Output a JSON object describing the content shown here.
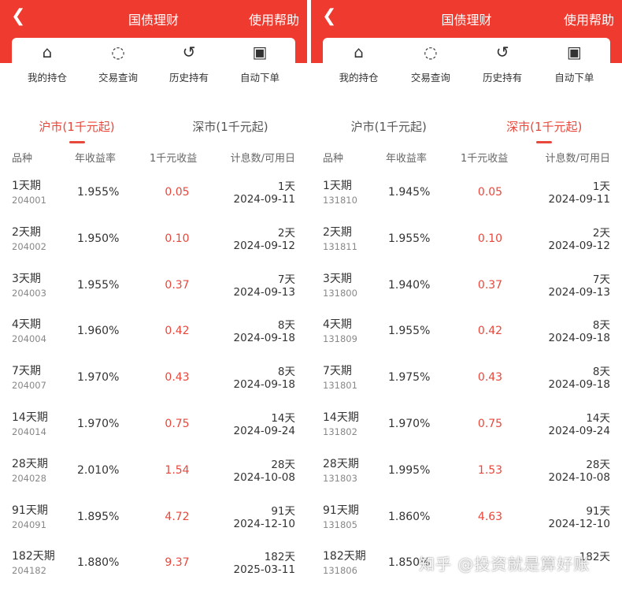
{
  "header": {
    "title": "国债理财",
    "help": "使用帮助",
    "back_icon": "chevron-left-icon"
  },
  "quick": [
    {
      "label": "我的持仓",
      "icon": "house-yuan-icon"
    },
    {
      "label": "交易查询",
      "icon": "chat-search-icon"
    },
    {
      "label": "历史持有",
      "icon": "history-icon"
    },
    {
      "label": "自动下单",
      "icon": "ai-fire-icon"
    }
  ],
  "tabs": [
    "沪市(1千元起)",
    "深市(1千元起)"
  ],
  "columns": [
    "品种",
    "年收益率",
    "1千元收益",
    "计息数/可用日"
  ],
  "accent": "#ef3a2f",
  "panels": [
    {
      "active_tab": 0,
      "rows": [
        {
          "name": "1天期",
          "code": "204001",
          "rate": "1.955%",
          "earn": "0.05",
          "days": "1天",
          "date": "2024-09-11"
        },
        {
          "name": "2天期",
          "code": "204002",
          "rate": "1.950%",
          "earn": "0.10",
          "days": "2天",
          "date": "2024-09-12"
        },
        {
          "name": "3天期",
          "code": "204003",
          "rate": "1.955%",
          "earn": "0.37",
          "days": "7天",
          "date": "2024-09-13"
        },
        {
          "name": "4天期",
          "code": "204004",
          "rate": "1.960%",
          "earn": "0.42",
          "days": "8天",
          "date": "2024-09-18"
        },
        {
          "name": "7天期",
          "code": "204007",
          "rate": "1.970%",
          "earn": "0.43",
          "days": "8天",
          "date": "2024-09-18"
        },
        {
          "name": "14天期",
          "code": "204014",
          "rate": "1.970%",
          "earn": "0.75",
          "days": "14天",
          "date": "2024-09-24"
        },
        {
          "name": "28天期",
          "code": "204028",
          "rate": "2.010%",
          "earn": "1.54",
          "days": "28天",
          "date": "2024-10-08"
        },
        {
          "name": "91天期",
          "code": "204091",
          "rate": "1.895%",
          "earn": "4.72",
          "days": "91天",
          "date": "2024-12-10"
        },
        {
          "name": "182天期",
          "code": "204182",
          "rate": "1.880%",
          "earn": "9.37",
          "days": "182天",
          "date": "2025-03-11"
        }
      ]
    },
    {
      "active_tab": 1,
      "rows": [
        {
          "name": "1天期",
          "code": "131810",
          "rate": "1.945%",
          "earn": "0.05",
          "days": "1天",
          "date": "2024-09-11"
        },
        {
          "name": "2天期",
          "code": "131811",
          "rate": "1.955%",
          "earn": "0.10",
          "days": "2天",
          "date": "2024-09-12"
        },
        {
          "name": "3天期",
          "code": "131800",
          "rate": "1.940%",
          "earn": "0.37",
          "days": "7天",
          "date": "2024-09-13"
        },
        {
          "name": "4天期",
          "code": "131809",
          "rate": "1.955%",
          "earn": "0.42",
          "days": "8天",
          "date": "2024-09-18"
        },
        {
          "name": "7天期",
          "code": "131801",
          "rate": "1.975%",
          "earn": "0.43",
          "days": "8天",
          "date": "2024-09-18"
        },
        {
          "name": "14天期",
          "code": "131802",
          "rate": "1.970%",
          "earn": "0.75",
          "days": "14天",
          "date": "2024-09-24"
        },
        {
          "name": "28天期",
          "code": "131803",
          "rate": "1.995%",
          "earn": "1.53",
          "days": "28天",
          "date": "2024-10-08"
        },
        {
          "name": "91天期",
          "code": "131805",
          "rate": "1.860%",
          "earn": "4.63",
          "days": "91天",
          "date": "2024-12-10"
        },
        {
          "name": "182天期",
          "code": "131806",
          "rate": "1.850%",
          "days": "182天"
        }
      ]
    }
  ],
  "watermark": "知乎 @投资就是算好账"
}
